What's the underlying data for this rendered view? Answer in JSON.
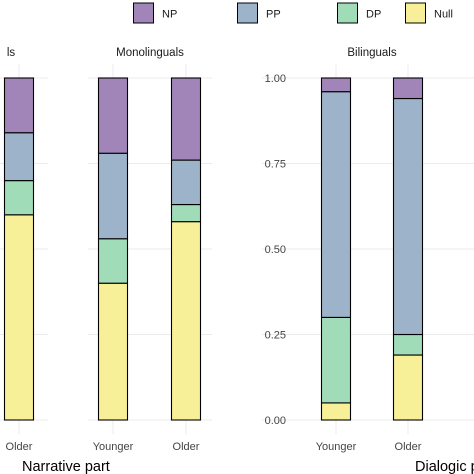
{
  "chart_data": {
    "type": "bar",
    "stacked": true,
    "legend": {
      "position": "top",
      "entries": [
        {
          "key": "NP",
          "label": "NP",
          "color": "#a285b8"
        },
        {
          "key": "PP",
          "label": "PP",
          "color": "#9db3c9"
        },
        {
          "key": "DP",
          "label": "DP",
          "color": "#a0dcb8"
        },
        {
          "key": "Null",
          "label": "Null",
          "color": "#f8f098"
        }
      ]
    },
    "ylim": [
      0,
      1
    ],
    "yticks": [
      "0.00",
      "0.25",
      "0.50",
      "0.75",
      "1.00"
    ],
    "grid": true,
    "captions": {
      "left": "Narrative part",
      "right": "Dialogic p"
    },
    "panels": [
      {
        "title": "ls",
        "categories": [
          "Older"
        ],
        "stacks": [
          {
            "Null": 0.6,
            "DP": 0.1,
            "PP": 0.14,
            "NP": 0.16
          }
        ]
      },
      {
        "title": "Monolinguals",
        "categories": [
          "Younger",
          "Older"
        ],
        "stacks": [
          {
            "Null": 0.4,
            "DP": 0.13,
            "PP": 0.25,
            "NP": 0.22
          },
          {
            "Null": 0.58,
            "DP": 0.05,
            "PP": 0.13,
            "NP": 0.24
          }
        ]
      },
      {
        "title": "Bilinguals",
        "categories": [
          "Younger",
          "Older"
        ],
        "stacks": [
          {
            "Null": 0.05,
            "DP": 0.25,
            "PP": 0.66,
            "NP": 0.04
          },
          {
            "Null": 0.19,
            "DP": 0.06,
            "PP": 0.69,
            "NP": 0.06
          }
        ]
      }
    ]
  }
}
